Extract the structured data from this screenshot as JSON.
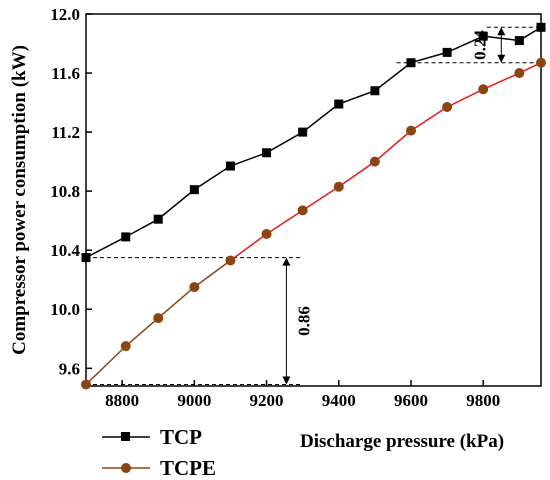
{
  "chart_data": {
    "type": "line",
    "xlabel": "Discharge pressure (kPa)",
    "ylabel": "Compressor power consumption (kW)",
    "xlim": [
      8700,
      9960
    ],
    "ylim": [
      9.48,
      12.0
    ],
    "xticks": [
      8800,
      9000,
      9200,
      9400,
      9600,
      9800
    ],
    "yticks": [
      9.6,
      10.0,
      10.4,
      10.8,
      11.2,
      11.6,
      12.0
    ],
    "xtick_labels": [
      "8800",
      "9000",
      "9200",
      "9400",
      "9600",
      "9800"
    ],
    "ytick_labels": [
      "9.6",
      "10.0",
      "10.4",
      "10.8",
      "11.2",
      "11.6",
      "12.0"
    ],
    "grid": false,
    "legend_position": "bottom-left",
    "series": [
      {
        "name": "TCP",
        "color": "#000000",
        "marker": "square",
        "x": [
          8700,
          8810,
          8900,
          9000,
          9100,
          9200,
          9300,
          9400,
          9500,
          9600,
          9700,
          9800,
          9900,
          9960
        ],
        "y": [
          10.35,
          10.49,
          10.61,
          10.81,
          10.97,
          11.06,
          11.2,
          11.39,
          11.48,
          11.67,
          11.74,
          11.85,
          11.82,
          11.91
        ]
      },
      {
        "name": "TCPE",
        "marker": "circle",
        "marker_color": "#8b4513",
        "segments": [
          {
            "color": "#8b4513",
            "x": [
              8700,
              8810,
              8900,
              9000,
              9100
            ],
            "y": [
              9.49,
              9.75,
              9.94,
              10.15,
              10.33
            ]
          },
          {
            "color": "#e8191b",
            "x": [
              9100,
              9200,
              9300,
              9400,
              9500,
              9600,
              9700,
              9800,
              9900,
              9960
            ],
            "y": [
              10.33,
              10.51,
              10.67,
              10.83,
              11.0,
              11.21,
              11.37,
              11.49,
              11.6,
              11.67
            ]
          }
        ]
      }
    ],
    "annotations": [
      {
        "text": "0.24",
        "x": 9850,
        "y_from": 11.67,
        "y_to": 11.91
      },
      {
        "text": "0.86",
        "x": 9255,
        "y_from": 9.49,
        "y_to": 10.35
      }
    ]
  }
}
